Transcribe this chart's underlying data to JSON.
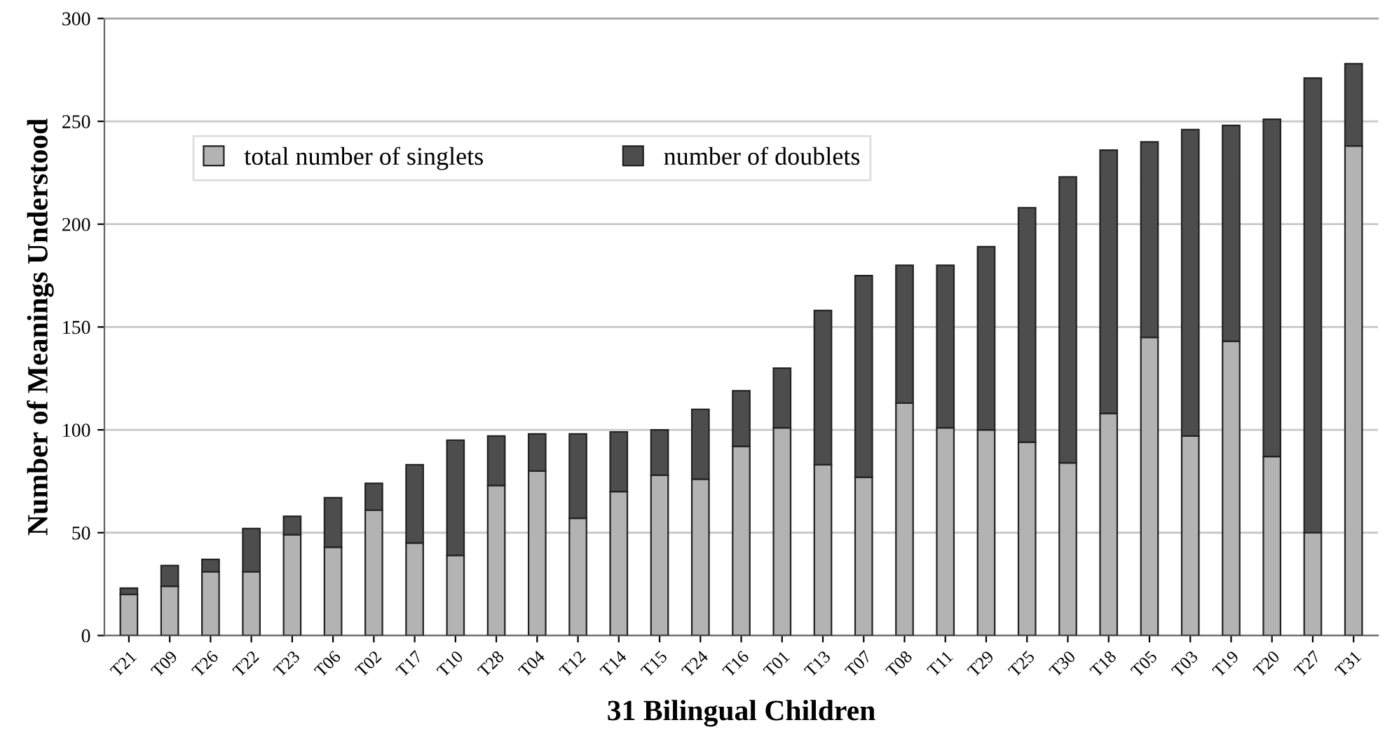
{
  "chart_data": {
    "type": "bar",
    "stacked": true,
    "xlabel": "31 Bilingual Children",
    "ylabel": "Number of Meanings Understood",
    "categories": [
      "T21",
      "T09",
      "T26",
      "T22",
      "T23",
      "T06",
      "T02",
      "T17",
      "T10",
      "T28",
      "T04",
      "T12",
      "T14",
      "T15",
      "T24",
      "T16",
      "T01",
      "T13",
      "T07",
      "T08",
      "T11",
      "T29",
      "T25",
      "T30",
      "T18",
      "T05",
      "T03",
      "T19",
      "T20",
      "T27",
      "T31"
    ],
    "series": [
      {
        "name": "total number of singlets",
        "color": "#b3b3b3",
        "values": [
          20,
          24,
          31,
          31,
          49,
          43,
          61,
          45,
          39,
          73,
          80,
          57,
          70,
          78,
          76,
          92,
          101,
          83,
          77,
          113,
          101,
          100,
          94,
          84,
          108,
          145,
          97,
          143,
          87,
          50,
          238
        ]
      },
      {
        "name": "number of doublets",
        "color": "#4d4d4d",
        "values": [
          3,
          10,
          6,
          21,
          9,
          24,
          13,
          38,
          56,
          24,
          18,
          41,
          29,
          22,
          34,
          27,
          29,
          75,
          98,
          67,
          79,
          89,
          114,
          139,
          128,
          95,
          149,
          105,
          164,
          221,
          40
        ]
      }
    ],
    "ylim": [
      0,
      300
    ],
    "yticks": [
      0,
      50,
      100,
      150,
      200,
      250,
      300
    ],
    "grid": "y",
    "legend": "top left"
  }
}
